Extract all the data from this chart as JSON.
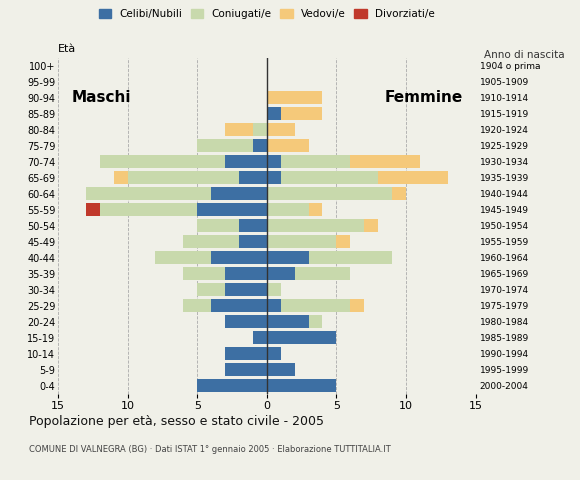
{
  "age_groups": [
    "0-4",
    "5-9",
    "10-14",
    "15-19",
    "20-24",
    "25-29",
    "30-34",
    "35-39",
    "40-44",
    "45-49",
    "50-54",
    "55-59",
    "60-64",
    "65-69",
    "70-74",
    "75-79",
    "80-84",
    "85-89",
    "90-94",
    "95-99",
    "100+"
  ],
  "birth_years": [
    "2000-2004",
    "1995-1999",
    "1990-1994",
    "1985-1989",
    "1980-1984",
    "1975-1979",
    "1970-1974",
    "1965-1969",
    "1960-1964",
    "1955-1959",
    "1950-1954",
    "1945-1949",
    "1940-1944",
    "1935-1939",
    "1930-1934",
    "1925-1929",
    "1920-1924",
    "1915-1919",
    "1910-1914",
    "1905-1909",
    "1904 o prima"
  ],
  "males": {
    "celibi": [
      5,
      3,
      3,
      1,
      3,
      4,
      3,
      3,
      4,
      2,
      2,
      5,
      4,
      2,
      3,
      1,
      0,
      0,
      0,
      0,
      0
    ],
    "coniugati": [
      0,
      0,
      0,
      0,
      0,
      2,
      2,
      3,
      4,
      4,
      3,
      7,
      9,
      8,
      9,
      4,
      1,
      0,
      0,
      0,
      0
    ],
    "vedovi": [
      0,
      0,
      0,
      0,
      0,
      0,
      0,
      0,
      0,
      0,
      0,
      0,
      0,
      1,
      0,
      0,
      2,
      0,
      0,
      0,
      0
    ],
    "divorziati": [
      0,
      0,
      0,
      0,
      0,
      0,
      0,
      0,
      0,
      0,
      0,
      1,
      0,
      0,
      0,
      0,
      0,
      0,
      0,
      0,
      0
    ]
  },
  "females": {
    "nubili": [
      5,
      2,
      1,
      5,
      3,
      1,
      0,
      2,
      3,
      0,
      0,
      0,
      0,
      1,
      1,
      0,
      0,
      1,
      0,
      0,
      0
    ],
    "coniugate": [
      0,
      0,
      0,
      0,
      1,
      5,
      1,
      4,
      6,
      5,
      7,
      3,
      9,
      7,
      5,
      0,
      0,
      0,
      0,
      0,
      0
    ],
    "vedove": [
      0,
      0,
      0,
      0,
      0,
      1,
      0,
      0,
      0,
      1,
      1,
      1,
      1,
      5,
      5,
      3,
      2,
      3,
      4,
      0,
      0
    ],
    "divorziate": [
      0,
      0,
      0,
      0,
      0,
      0,
      0,
      0,
      0,
      0,
      0,
      0,
      0,
      0,
      0,
      0,
      0,
      0,
      0,
      0,
      0
    ]
  },
  "color_celibi": "#3d6fa3",
  "color_coniugati": "#c8d9ac",
  "color_vedovi": "#f5c97a",
  "color_divorziati": "#c0392b",
  "xlim": 15,
  "title": "Popolazione per età, sesso e stato civile - 2005",
  "subtitle": "COMUNE DI VALNEGRA (BG) · Dati ISTAT 1° gennaio 2005 · Elaborazione TUTTITALIA.IT",
  "ylabel_left": "Età",
  "ylabel_right": "Anno di nascita",
  "label_males": "Maschi",
  "label_females": "Femmine",
  "bg_color": "#f0f0e8"
}
